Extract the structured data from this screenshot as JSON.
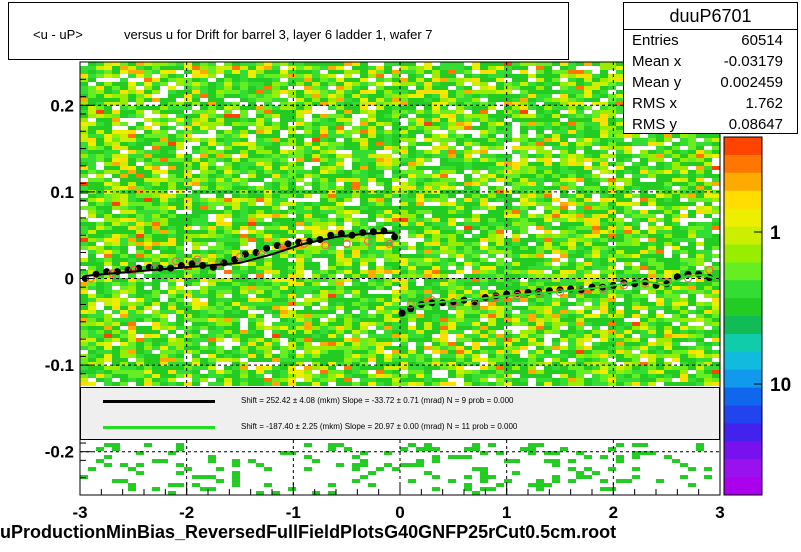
{
  "title": {
    "part1": "<u - uP>",
    "part2": "versus   u for Drift for barrel 3, layer 6 ladder 1, wafer 7"
  },
  "stats": {
    "name": "duuP6701",
    "rows": [
      {
        "label": "Entries",
        "value": "60514"
      },
      {
        "label": "Mean x",
        "value": "-0.03179"
      },
      {
        "label": "Mean y",
        "value": "0.002459"
      },
      {
        "label": "RMS x",
        "value": "1.762"
      },
      {
        "label": "RMS y",
        "value": "0.08647"
      }
    ]
  },
  "footer": "uProductionMinBias_ReversedFullFieldPlotsG40GNFP25rCut0.5cm.root",
  "fits": [
    {
      "color": "#000000",
      "text": "Shift =   252.42 ± 4.08 (mkm) Slope =   -33.72 ± 0.71 (mrad)  N = 9 prob = 0.000"
    },
    {
      "color": "#22dd22",
      "text": "Shift =  -187.40 ± 2.25 (mkm) Slope =    20.97 ± 0.00 (mrad)  N = 11 prob = 0.000"
    }
  ],
  "colors": {
    "background_fill": "#22cc22",
    "black_profile": "#000000",
    "open_profile": "#ff5555",
    "green_fit": "#22dd22"
  },
  "chart_data": {
    "type": "heatmap",
    "title": "<u - uP>       versus   u for Drift for barrel 3, layer 6 ladder 1, wafer 7",
    "xlim": [
      -3,
      3
    ],
    "ylim": [
      -0.25,
      0.25
    ],
    "x_ticks": [
      "-3",
      "-2",
      "-1",
      "0",
      "1",
      "2",
      "3"
    ],
    "y_ticks": [
      "-0.2",
      "-0.1",
      "0",
      "0.1",
      "0.2"
    ],
    "z_scale": "log",
    "z_ticks": [
      "1",
      "10"
    ],
    "grid": true,
    "series": [
      {
        "style": "filled-markers",
        "x": [
          -2.95,
          -2.85,
          -2.75,
          -2.65,
          -2.55,
          -2.45,
          -2.35,
          -2.25,
          -2.15,
          -2.05,
          -1.95,
          -1.85,
          -1.75,
          -1.65,
          -1.55,
          -1.45,
          -1.35,
          -1.25,
          -1.15,
          -1.05,
          -0.95,
          -0.85,
          -0.75,
          -0.65,
          -0.55,
          -0.45,
          -0.35,
          -0.25,
          -0.15,
          -0.05,
          0.02,
          0.1,
          0.2,
          0.3,
          0.4,
          0.5,
          0.6,
          0.7,
          0.8,
          0.9,
          1.0,
          1.1,
          1.2,
          1.3,
          1.4,
          1.5,
          1.6,
          1.7,
          1.8,
          1.9,
          2.0,
          2.1,
          2.2,
          2.3,
          2.4,
          2.5,
          2.6,
          2.7,
          2.8,
          2.9
        ],
        "y": [
          0.0,
          0.005,
          0.008,
          0.008,
          0.01,
          0.012,
          0.013,
          0.012,
          0.012,
          0.015,
          0.017,
          0.015,
          0.013,
          0.018,
          0.022,
          0.028,
          0.03,
          0.035,
          0.038,
          0.04,
          0.042,
          0.043,
          0.045,
          0.05,
          0.052,
          0.05,
          0.053,
          0.054,
          0.055,
          0.048,
          -0.04,
          -0.035,
          -0.03,
          -0.028,
          -0.028,
          -0.027,
          -0.025,
          -0.027,
          -0.022,
          -0.02,
          -0.018,
          -0.017,
          -0.016,
          -0.015,
          -0.014,
          -0.013,
          -0.012,
          -0.013,
          -0.01,
          -0.01,
          -0.008,
          -0.005,
          -0.006,
          -0.004,
          -0.008,
          -0.006,
          0.002,
          0.005,
          0.005,
          0.001
        ]
      },
      {
        "style": "open-markers",
        "x": [
          -2.9,
          -2.7,
          -2.5,
          -2.3,
          -2.1,
          -1.9,
          -1.7,
          -1.5,
          -1.3,
          -1.1,
          -0.9,
          -0.7,
          -0.5,
          -0.3,
          -0.1,
          0.1,
          0.3,
          0.5,
          0.7,
          0.9,
          1.1,
          1.3,
          1.5,
          1.7,
          1.9,
          2.1,
          2.3,
          2.5,
          2.7,
          2.9
        ],
        "y": [
          0.0,
          0.006,
          0.01,
          0.012,
          0.02,
          0.022,
          0.018,
          0.025,
          0.028,
          0.035,
          0.04,
          0.038,
          0.04,
          0.043,
          0.04,
          -0.03,
          -0.025,
          -0.028,
          -0.03,
          -0.022,
          -0.02,
          -0.018,
          -0.016,
          -0.014,
          -0.012,
          -0.008,
          -0.006,
          -0.004,
          0.0,
          0.01
        ]
      },
      {
        "style": "line",
        "x": [
          0.15,
          0.4,
          0.7,
          1.0,
          1.3,
          1.6,
          1.9,
          2.1,
          2.3,
          2.5,
          2.7,
          2.85,
          2.95
        ],
        "y": [
          -0.03,
          -0.027,
          -0.024,
          -0.02,
          -0.017,
          -0.014,
          -0.01,
          -0.006,
          -0.003,
          -0.008,
          0.003,
          0.004,
          0.0
        ]
      },
      {
        "style": "line",
        "x": [
          -2.95,
          -2.5,
          -2.0,
          -1.5,
          -1.2,
          -0.9,
          -0.6,
          -0.3,
          -0.05
        ],
        "y": [
          0.003,
          0.008,
          0.013,
          0.018,
          0.028,
          0.04,
          0.048,
          0.052,
          0.053
        ]
      }
    ]
  }
}
